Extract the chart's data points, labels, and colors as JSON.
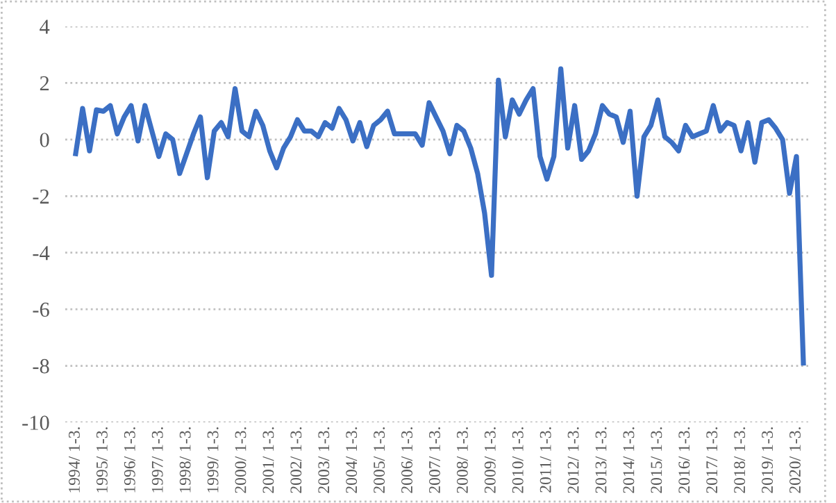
{
  "chart_data": {
    "type": "line",
    "categories": [
      "1994/ 1-3.",
      null,
      null,
      null,
      "1995/ 1-3.",
      null,
      null,
      null,
      "1996/ 1-3.",
      null,
      null,
      null,
      "1997/ 1-3.",
      null,
      null,
      null,
      "1998/ 1-3.",
      null,
      null,
      null,
      "1999/ 1-3.",
      null,
      null,
      null,
      "2000/ 1-3.",
      null,
      null,
      null,
      "2001/ 1-3.",
      null,
      null,
      null,
      "2002/ 1-3.",
      null,
      null,
      null,
      "2003/ 1-3.",
      null,
      null,
      null,
      "2004/ 1-3.",
      null,
      null,
      null,
      "2005/ 1-3.",
      null,
      null,
      null,
      "2006/ 1-3.",
      null,
      null,
      null,
      "2007/ 1-3.",
      null,
      null,
      null,
      "2008/ 1-3.",
      null,
      null,
      null,
      "2009/ 1-3.",
      null,
      null,
      null,
      "2010/ 1-3.",
      null,
      null,
      null,
      "2011/ 1-3.",
      null,
      null,
      null,
      "2012/ 1-3.",
      null,
      null,
      null,
      "2013/ 1-3.",
      null,
      null,
      null,
      "2014/ 1-3.",
      null,
      null,
      null,
      "2015/ 1-3.",
      null,
      null,
      null,
      "2016/ 1-3.",
      null,
      null,
      null,
      "2017/ 1-3.",
      null,
      null,
      null,
      "2018/ 1-3.",
      null,
      null,
      null,
      "2019/ 1-3.",
      null,
      null,
      null,
      "2020/ 1-3.",
      null
    ],
    "series": [
      {
        "color": "#3b6fc4",
        "values": [
          -0.5,
          1.1,
          -0.4,
          1.05,
          1.0,
          1.2,
          0.2,
          0.8,
          1.2,
          -0.05,
          1.2,
          0.3,
          -0.6,
          0.2,
          0.0,
          -1.2,
          -0.5,
          0.2,
          0.8,
          -1.35,
          0.3,
          0.6,
          0.1,
          1.8,
          0.3,
          0.1,
          1.0,
          0.5,
          -0.4,
          -1.0,
          -0.3,
          0.1,
          0.7,
          0.3,
          0.3,
          0.1,
          0.6,
          0.4,
          1.1,
          0.7,
          -0.05,
          0.6,
          -0.25,
          0.5,
          0.7,
          1.0,
          0.2,
          0.2,
          0.2,
          0.2,
          -0.2,
          1.3,
          0.8,
          0.3,
          -0.5,
          0.5,
          0.3,
          -0.3,
          -1.2,
          -2.6,
          -4.8,
          2.1,
          0.1,
          1.4,
          0.9,
          1.4,
          1.8,
          -0.6,
          -1.4,
          -0.6,
          2.5,
          -0.3,
          1.2,
          -0.7,
          -0.4,
          0.2,
          1.2,
          0.9,
          0.8,
          -0.1,
          1.0,
          -2.0,
          0.1,
          0.5,
          1.4,
          0.1,
          -0.1,
          -0.4,
          0.5,
          0.1,
          0.2,
          0.3,
          1.2,
          0.3,
          0.6,
          0.5,
          -0.4,
          0.6,
          -0.8,
          0.6,
          0.7,
          0.4,
          0.0,
          -1.9,
          -0.6,
          -7.9
        ]
      }
    ],
    "ylim": [
      -10,
      4
    ],
    "yticks": [
      -10,
      -8,
      -6,
      -4,
      -2,
      0,
      2,
      4
    ],
    "grid": "y",
    "legend": false,
    "marker": "none",
    "line_style": "solid"
  }
}
